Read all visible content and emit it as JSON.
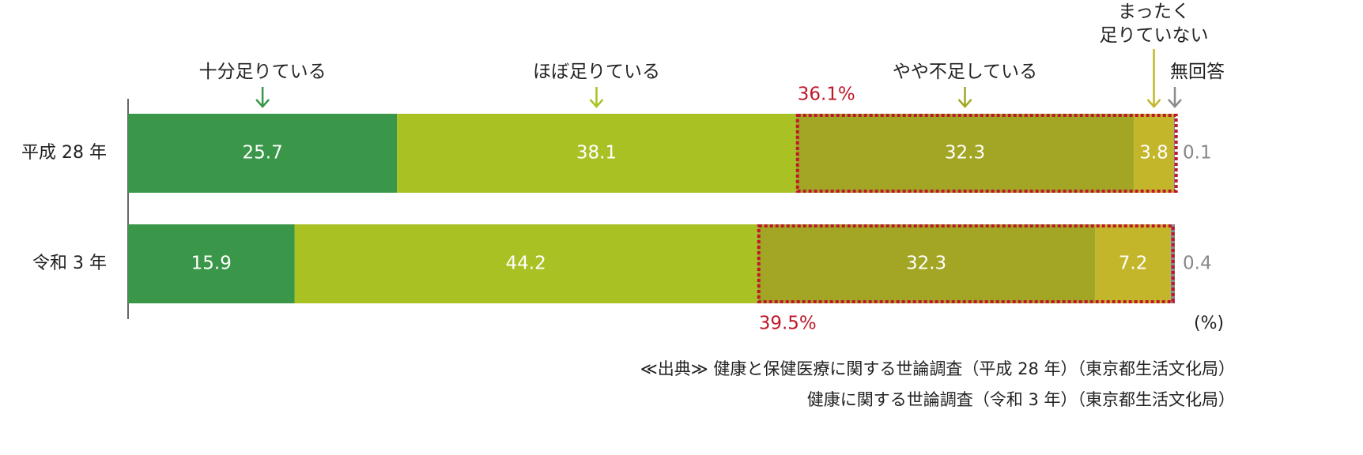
{
  "chart_data": {
    "type": "stacked-bar-horizontal",
    "categories": [
      "平成 28 年",
      "令和 3 年"
    ],
    "series": [
      {
        "name": "十分足りている",
        "color": "#3a9648",
        "values": [
          25.7,
          15.9
        ]
      },
      {
        "name": "ほぼ足りている",
        "color": "#aac124",
        "values": [
          38.1,
          44.2
        ]
      },
      {
        "name": "やや不足している",
        "color": "#a2a624",
        "values": [
          32.3,
          32.3
        ]
      },
      {
        "name": "まったく\n足りていない",
        "color": "#c4b62a",
        "values": [
          3.8,
          7.2
        ]
      },
      {
        "name": "無回答",
        "color": "#8a8a8a",
        "values": [
          0.1,
          0.4
        ]
      }
    ],
    "xlim": [
      0,
      100
    ],
    "box_labels": [
      "36.1%",
      "39.5%"
    ],
    "box_color": "#c0182a",
    "unit_label": "(%)",
    "source": [
      "≪出典≫ 健康と保健医療に関する世論調査（平成 28 年）（東京都生活文化局）",
      "健康に関する世論調査（令和 3 年）（東京都生活文化局）"
    ]
  }
}
